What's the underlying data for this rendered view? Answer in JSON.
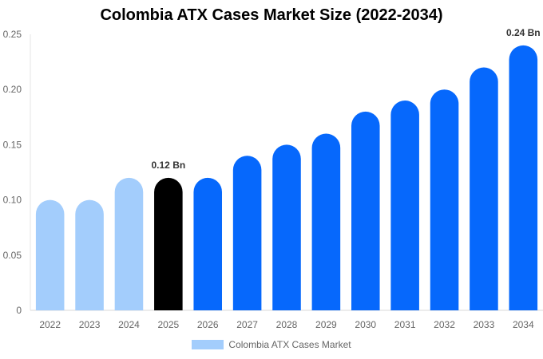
{
  "chart_data": {
    "type": "bar",
    "title": "Colombia ATX Cases Market Size (2022-2034)",
    "categories": [
      "2022",
      "2023",
      "2024",
      "2025",
      "2026",
      "2027",
      "2028",
      "2029",
      "2030",
      "2031",
      "2032",
      "2033",
      "2034"
    ],
    "series": [
      {
        "name": "Colombia ATX Cases Market",
        "values": [
          0.1,
          0.1,
          0.12,
          0.12,
          0.12,
          0.14,
          0.15,
          0.16,
          0.18,
          0.19,
          0.2,
          0.22,
          0.24
        ]
      }
    ],
    "bar_colors": [
      "#a3cdfc",
      "#a3cdfc",
      "#a3cdfc",
      "#000000",
      "#0668fc",
      "#0668fc",
      "#0668fc",
      "#0668fc",
      "#0668fc",
      "#0668fc",
      "#0668fc",
      "#0668fc",
      "#0668fc"
    ],
    "y_ticks": [
      "0",
      "0.05",
      "0.10",
      "0.15",
      "0.20",
      "0.25"
    ],
    "ylim": [
      0,
      0.25
    ],
    "data_labels": [
      {
        "category": "2025",
        "text": "0.12 Bn"
      },
      {
        "category": "2034",
        "text": "0.24 Bn"
      }
    ],
    "legend_position": "bottom",
    "grid": false,
    "xlabel": "",
    "ylabel": ""
  }
}
